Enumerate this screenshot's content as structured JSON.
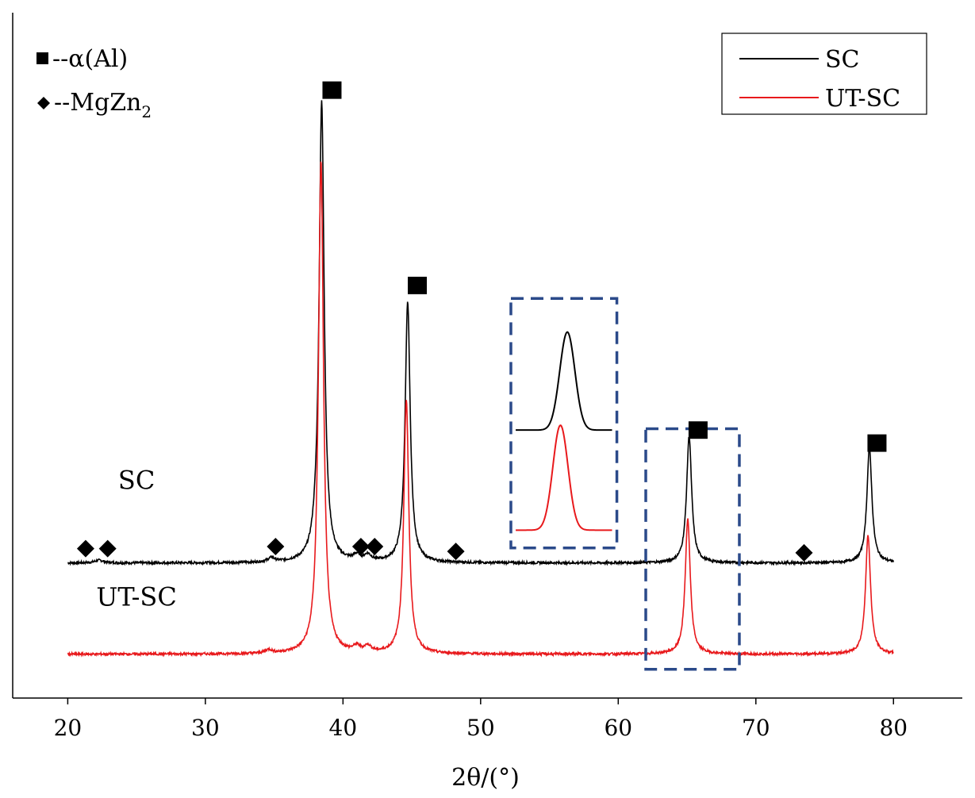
{
  "chart_data": {
    "type": "line",
    "title": "",
    "xlabel": "2θ/(°)",
    "ylabel": "",
    "xlim": [
      16,
      85
    ],
    "ylim": [
      0,
      100
    ],
    "xticks": [
      20,
      30,
      40,
      50,
      60,
      70,
      80
    ],
    "tick_labels": [
      "20",
      "30",
      "40",
      "50",
      "60",
      "70",
      "80"
    ],
    "grid": false,
    "series": [
      {
        "name": "SC",
        "color": "#000000",
        "offset": 19.7,
        "peaks": [
          {
            "x": 38.45,
            "h": 67.0,
            "w": 0.22
          },
          {
            "x": 44.7,
            "h": 38.0,
            "w": 0.22
          },
          {
            "x": 65.15,
            "h": 18.5,
            "w": 0.22
          },
          {
            "x": 78.25,
            "h": 16.8,
            "w": 0.22
          },
          {
            "x": 34.8,
            "h": 0.6,
            "w": 0.3
          },
          {
            "x": 38.0,
            "h": 1.0,
            "w": 0.3
          },
          {
            "x": 41.0,
            "h": 0.8,
            "w": 0.3
          },
          {
            "x": 41.8,
            "h": 0.9,
            "w": 0.3
          },
          {
            "x": 22.3,
            "h": 0.4,
            "w": 0.4
          }
        ]
      },
      {
        "name": "UT-SC",
        "color": "#e8191c",
        "offset": 6.4,
        "peaks": [
          {
            "x": 38.4,
            "h": 72.0,
            "w": 0.22
          },
          {
            "x": 44.6,
            "h": 37.0,
            "w": 0.22
          },
          {
            "x": 65.05,
            "h": 19.7,
            "w": 0.22
          },
          {
            "x": 78.15,
            "h": 17.3,
            "w": 0.22
          },
          {
            "x": 34.6,
            "h": 0.5,
            "w": 0.3
          },
          {
            "x": 41.0,
            "h": 0.8,
            "w": 0.3
          },
          {
            "x": 41.8,
            "h": 0.9,
            "w": 0.3
          }
        ]
      }
    ],
    "series_labels": [
      {
        "text": "SC",
        "x": 25,
        "y": 30.5
      },
      {
        "text": "UT-SC",
        "x": 25,
        "y": 13.5
      }
    ],
    "alpha_al_markers": [
      {
        "x": 39.2,
        "y": 88.7
      },
      {
        "x": 45.4,
        "y": 60.2
      },
      {
        "x": 65.8,
        "y": 39.1
      },
      {
        "x": 78.8,
        "y": 37.2
      }
    ],
    "mgzn2_markers": [
      {
        "x": 21.3,
        "y": 21.8
      },
      {
        "x": 22.9,
        "y": 21.8
      },
      {
        "x": 35.1,
        "y": 22.1
      },
      {
        "x": 41.3,
        "y": 22.1
      },
      {
        "x": 42.3,
        "y": 22.1
      },
      {
        "x": 48.2,
        "y": 21.4
      },
      {
        "x": 73.5,
        "y": 21.2
      }
    ],
    "phase_legend": [
      {
        "symbol": "square",
        "label": "--α(Al)"
      },
      {
        "symbol": "diamond",
        "label": "--MgZn",
        "subscript": "2"
      }
    ],
    "legend": {
      "placement": "top-right",
      "entries": [
        {
          "label": "SC",
          "color": "#000000"
        },
        {
          "label": "UT-SC",
          "color": "#e8191c"
        }
      ]
    },
    "highlight_box": {
      "x0": 62,
      "x1": 68.8,
      "y0": 4.2,
      "y1": 39.3,
      "color": "#2b4a8a"
    },
    "inset": {
      "x0": 52.2,
      "x1": 59.9,
      "y0": 21.9,
      "y1": 58.3,
      "color": "#2b4a8a",
      "description": "zoom of 2θ≈65° peak",
      "curves": [
        {
          "name": "SC",
          "color": "#000000",
          "base": 39.1,
          "peak": 53.4,
          "center": 56.3,
          "width": 0.55
        },
        {
          "name": "UT-SC",
          "color": "#e8191c",
          "base": 24.5,
          "peak": 39.8,
          "center": 55.8,
          "width": 0.55
        }
      ]
    }
  }
}
